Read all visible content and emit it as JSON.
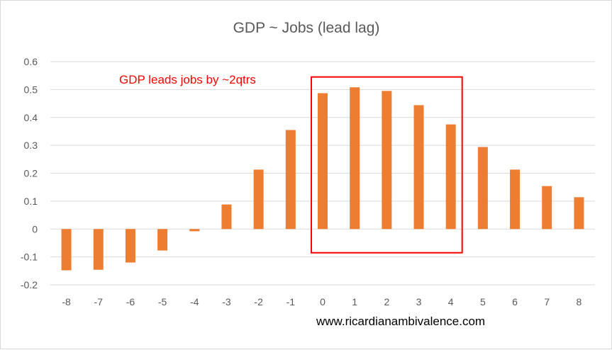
{
  "chart_data": {
    "type": "bar",
    "title": "GDP ~ Jobs (lead lag)",
    "xlabel": "",
    "ylabel": "",
    "categories": [
      "-8",
      "-7",
      "-6",
      "-5",
      "-4",
      "-3",
      "-2",
      "-1",
      "0",
      "1",
      "2",
      "3",
      "4",
      "5",
      "6",
      "7",
      "8"
    ],
    "values": [
      -0.148,
      -0.146,
      -0.12,
      -0.077,
      -0.008,
      0.088,
      0.213,
      0.355,
      0.487,
      0.508,
      0.495,
      0.444,
      0.375,
      0.294,
      0.213,
      0.154,
      0.114
    ],
    "ylim": [
      -0.2,
      0.6
    ],
    "yticks": [
      "-0.2",
      "-0.1",
      "0",
      "0.1",
      "0.2",
      "0.3",
      "0.4",
      "0.5",
      "0.6"
    ],
    "grid": true,
    "bar_color": "#ed7d31",
    "annotation": "GDP leads jobs by ~2qtrs",
    "annotation_color": "#ff0000",
    "highlight_categories": [
      "0",
      "4"
    ],
    "source": "www.ricardianambivalence.com"
  }
}
